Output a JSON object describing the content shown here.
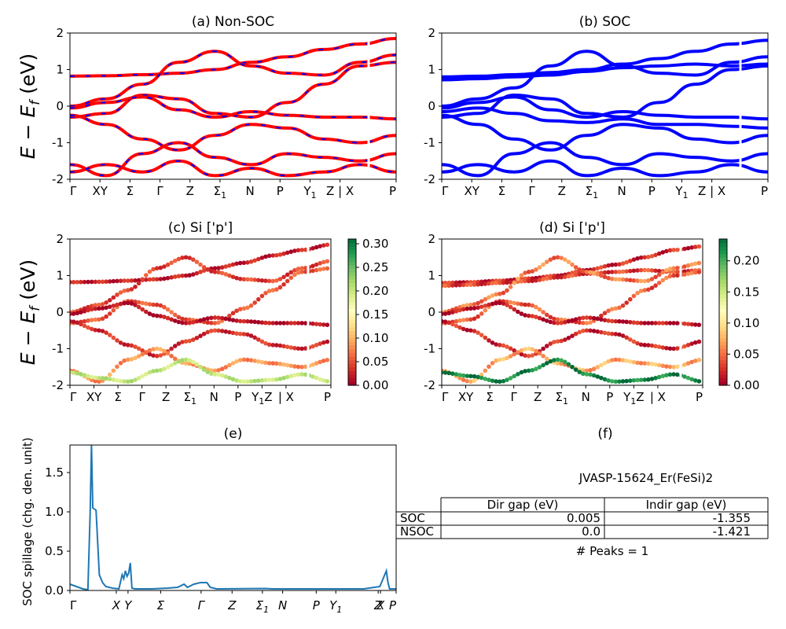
{
  "figure": {
    "ylabel_band": "E − E",
    "ylabel_band_sub": "f",
    "ylabel_band_unit": " (eV)",
    "hs_labels": [
      "Γ",
      "X",
      "Y",
      "Σ",
      "Γ",
      "Z",
      "Σ1",
      "N",
      "P",
      "Y1",
      "Z | X",
      "P"
    ]
  },
  "colors": {
    "nonsoc_line": "#ff0000",
    "nonsoc_dash": "#0000ff",
    "soc_line": "#0000ff",
    "spillage_line": "#1f77b4"
  },
  "chart_data": [
    {
      "id": "a",
      "type": "line",
      "title": "(a) Non-SOC",
      "ylabel": "E − Ef (eV)",
      "ylim": [
        -2,
        2
      ],
      "yticks": [
        2,
        1,
        0,
        -1,
        -2
      ],
      "xticks": [
        "Γ",
        "XY",
        "Σ",
        "Γ",
        "Z",
        "Σ1",
        "N",
        "P",
        "Y1",
        "Z | X",
        "P"
      ],
      "series": [
        {
          "values": [
            0.82,
            0.83,
            0.86,
            0.9,
            1.0,
            1.2,
            1.35,
            1.55,
            1.7,
            1.85
          ]
        },
        {
          "values": [
            0.0,
            0.2,
            0.6,
            1.2,
            1.5,
            1.1,
            0.9,
            0.85,
            1.2,
            1.4
          ]
        },
        {
          "values": [
            -0.3,
            -0.2,
            0.3,
            0.2,
            -0.2,
            -0.3,
            0.1,
            0.6,
            1.1,
            1.2
          ]
        },
        {
          "values": [
            -0.05,
            0.1,
            0.25,
            -0.1,
            -0.3,
            -0.15,
            -0.25,
            -0.3,
            -0.3,
            -0.35
          ]
        },
        {
          "values": [
            -0.25,
            -0.5,
            -0.9,
            -1.2,
            -0.8,
            -0.5,
            -0.6,
            -0.9,
            -1.0,
            -0.8
          ]
        },
        {
          "values": [
            -1.6,
            -1.9,
            -1.3,
            -1.0,
            -1.4,
            -1.6,
            -1.3,
            -1.4,
            -1.5,
            -1.3
          ]
        },
        {
          "values": [
            -1.8,
            -1.6,
            -1.8,
            -1.5,
            -1.9,
            -1.7,
            -1.9,
            -1.8,
            -1.6,
            -1.8
          ]
        }
      ]
    },
    {
      "id": "b",
      "type": "line",
      "title": "(b) SOC",
      "ylim": [
        -2,
        2
      ],
      "yticks": [
        2,
        1,
        0,
        -1,
        -2
      ],
      "xticks": [
        "Γ",
        "XY",
        "Σ",
        "Γ",
        "Z",
        "Σ1",
        "N",
        "P",
        "Y1",
        "Z | X",
        "P"
      ],
      "series": [
        {
          "values": [
            0.8,
            0.82,
            0.86,
            0.92,
            1.0,
            1.15,
            1.3,
            1.5,
            1.7,
            1.8
          ]
        },
        {
          "values": [
            0.72,
            0.75,
            0.8,
            0.85,
            0.95,
            1.05,
            1.1,
            1.15,
            1.1,
            1.15
          ]
        },
        {
          "values": [
            0.0,
            0.2,
            0.5,
            1.1,
            1.5,
            1.1,
            0.9,
            0.85,
            1.2,
            1.35
          ]
        },
        {
          "values": [
            -0.3,
            -0.2,
            0.3,
            0.2,
            -0.2,
            -0.3,
            0.1,
            0.6,
            1.0,
            1.1
          ]
        },
        {
          "values": [
            -0.05,
            0.1,
            0.25,
            -0.1,
            -0.3,
            -0.15,
            -0.25,
            -0.3,
            -0.3,
            -0.35
          ]
        },
        {
          "values": [
            -0.15,
            -0.05,
            -0.2,
            -0.4,
            -0.45,
            -0.35,
            -0.5,
            -0.5,
            -0.55,
            -0.6
          ]
        },
        {
          "values": [
            -0.25,
            -0.5,
            -0.9,
            -1.2,
            -0.8,
            -0.5,
            -0.6,
            -0.9,
            -1.0,
            -0.8
          ]
        },
        {
          "values": [
            -1.6,
            -1.9,
            -1.3,
            -1.0,
            -1.4,
            -1.6,
            -1.3,
            -1.4,
            -1.5,
            -1.3
          ]
        },
        {
          "values": [
            -1.8,
            -1.6,
            -1.8,
            -1.5,
            -1.9,
            -1.7,
            -1.9,
            -1.8,
            -1.6,
            -1.8
          ]
        }
      ]
    },
    {
      "id": "c",
      "type": "scatter",
      "title": "(c)  Si ['p']",
      "ylabel": "E − Ef (eV)",
      "ylim": [
        -2,
        2
      ],
      "yticks": [
        2,
        1,
        0,
        -1,
        -2
      ],
      "xticks": [
        "Γ",
        "XY",
        "Σ",
        "Γ",
        "Z",
        "Σ1",
        "N",
        "P",
        "Y1Z",
        "| X",
        "P"
      ],
      "colorbar": {
        "ticks": [
          0.3,
          0.25,
          0.2,
          0.15,
          0.1,
          0.05,
          0.0
        ],
        "max": 0.31
      },
      "series": [
        {
          "values": [
            0.82,
            0.83,
            0.86,
            0.9,
            1.0,
            1.2,
            1.35,
            1.55,
            1.7,
            1.85
          ],
          "weight": 0.02
        },
        {
          "values": [
            0.0,
            0.2,
            0.6,
            1.2,
            1.5,
            1.1,
            0.9,
            0.85,
            1.2,
            1.4
          ],
          "weight": 0.04
        },
        {
          "values": [
            -0.3,
            -0.2,
            0.3,
            0.2,
            -0.2,
            -0.3,
            0.1,
            0.6,
            1.1,
            1.2
          ],
          "weight": 0.05
        },
        {
          "values": [
            -0.05,
            0.1,
            0.25,
            -0.1,
            -0.3,
            -0.15,
            -0.25,
            -0.3,
            -0.3,
            -0.35
          ],
          "weight": 0.01
        },
        {
          "values": [
            -0.25,
            -0.5,
            -0.9,
            -1.2,
            -0.8,
            -0.5,
            -0.6,
            -0.9,
            -1.0,
            -0.8
          ],
          "weight": 0.03
        },
        {
          "values": [
            -1.6,
            -1.9,
            -1.3,
            -1.0,
            -1.4,
            -1.6,
            -1.3,
            -1.4,
            -1.5,
            -1.3
          ],
          "weight": 0.08
        },
        {
          "values": [
            -1.65,
            -1.8,
            -1.9,
            -1.6,
            -1.3,
            -1.7,
            -1.9,
            -1.85,
            -1.7,
            -1.9
          ],
          "weight": 0.2
        }
      ]
    },
    {
      "id": "d",
      "type": "scatter",
      "title": "(d) Si ['p']",
      "ylim": [
        -2,
        2
      ],
      "yticks": [
        2,
        1,
        0,
        -1,
        -2
      ],
      "xticks": [
        "Γ",
        "XY",
        "Σ",
        "Γ",
        "Z",
        "Σ1",
        "N",
        "P",
        "Y1Z",
        "| X",
        "P"
      ],
      "colorbar": {
        "ticks": [
          0.2,
          0.15,
          0.1,
          0.05,
          0.0
        ],
        "max": 0.235
      },
      "series": [
        {
          "values": [
            0.8,
            0.82,
            0.86,
            0.92,
            1.0,
            1.15,
            1.3,
            1.5,
            1.7,
            1.8
          ],
          "weight": 0.02
        },
        {
          "values": [
            0.72,
            0.75,
            0.8,
            0.85,
            0.95,
            1.05,
            1.1,
            1.15,
            1.1,
            1.15
          ],
          "weight": 0.03
        },
        {
          "values": [
            0.0,
            0.2,
            0.5,
            1.1,
            1.5,
            1.1,
            0.9,
            0.85,
            1.2,
            1.35
          ],
          "weight": 0.05
        },
        {
          "values": [
            -0.3,
            -0.2,
            0.3,
            0.2,
            -0.2,
            -0.3,
            0.1,
            0.6,
            1.0,
            1.1
          ],
          "weight": 0.04
        },
        {
          "values": [
            -0.05,
            0.1,
            0.25,
            -0.1,
            -0.3,
            -0.15,
            -0.25,
            -0.3,
            -0.3,
            -0.35
          ],
          "weight": 0.01
        },
        {
          "values": [
            -0.25,
            -0.5,
            -0.9,
            -1.2,
            -0.8,
            -0.5,
            -0.6,
            -0.9,
            -1.0,
            -0.8
          ],
          "weight": 0.02
        },
        {
          "values": [
            -1.6,
            -1.9,
            -1.3,
            -1.0,
            -1.4,
            -1.6,
            -1.3,
            -1.4,
            -1.5,
            -1.3
          ],
          "weight": 0.07
        },
        {
          "values": [
            -1.65,
            -1.75,
            -1.9,
            -1.6,
            -1.3,
            -1.7,
            -1.9,
            -1.85,
            -1.7,
            -1.9
          ],
          "weight": 0.22
        }
      ]
    },
    {
      "id": "e",
      "type": "line",
      "title": "(e)",
      "ylabel": "SOC spillage (chg. den. unit)",
      "ylim": [
        0,
        1.85
      ],
      "yticks": [
        0.0,
        0.5,
        1.0,
        1.5
      ],
      "xticks": [
        "Γ",
        "X",
        "Y",
        "Σ",
        "Γ",
        "Z",
        "Σ1",
        "N",
        "P",
        "Y1",
        "Z",
        "X",
        "P"
      ],
      "x": [
        0,
        0.02,
        0.04,
        0.055,
        0.062,
        0.066,
        0.07,
        0.08,
        0.09,
        0.1,
        0.11,
        0.13,
        0.15,
        0.16,
        0.165,
        0.17,
        0.175,
        0.18,
        0.185,
        0.19,
        0.2,
        0.25,
        0.3,
        0.33,
        0.35,
        0.36,
        0.38,
        0.4,
        0.42,
        0.43,
        0.45,
        0.6,
        0.62,
        0.8,
        0.9,
        0.95,
        0.965,
        0.97,
        0.975,
        0.98,
        0.99,
        1.0
      ],
      "values": [
        0.08,
        0.05,
        0.02,
        0.01,
        1.0,
        1.85,
        1.05,
        1.02,
        0.2,
        0.1,
        0.05,
        0.03,
        0.02,
        0.2,
        0.15,
        0.25,
        0.18,
        0.22,
        0.35,
        0.03,
        0.02,
        0.02,
        0.03,
        0.04,
        0.08,
        0.04,
        0.08,
        0.1,
        0.1,
        0.04,
        0.02,
        0.025,
        0.02,
        0.02,
        0.02,
        0.05,
        0.2,
        0.25,
        0.1,
        0.02,
        0.02,
        0.02
      ]
    },
    {
      "id": "f",
      "type": "table",
      "title": "(f)",
      "subtitle": "JVASP-15624_Er(FeSi)2",
      "columns": [
        "",
        "Dir gap (eV)",
        "Indir gap (eV)"
      ],
      "rows": [
        [
          "SOC",
          "0.005",
          "-1.355"
        ],
        [
          "NSOC",
          "0.0",
          "-1.421"
        ]
      ],
      "footer": "# Peaks = 1"
    }
  ]
}
